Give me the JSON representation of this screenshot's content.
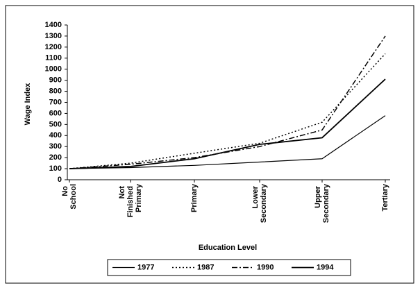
{
  "chart_data": {
    "type": "line",
    "y_label": "Wage Index",
    "x_label": "Education Level",
    "categories": [
      "No School",
      "Not Finished Primary",
      "Primary",
      "Lower Secondary",
      "Upper Secondary",
      "Tertiary"
    ],
    "series": [
      {
        "name": "1977",
        "color": "#000000",
        "dash": "solid",
        "width": 1.2,
        "values": [
          100,
          110,
          130,
          160,
          190,
          580
        ]
      },
      {
        "name": "1987",
        "color": "#000000",
        "dash": "dotted",
        "width": 1.5,
        "values": [
          100,
          150,
          240,
          330,
          520,
          1140
        ]
      },
      {
        "name": "1990",
        "color": "#000000",
        "dash": "dashdot",
        "width": 1.5,
        "values": [
          100,
          140,
          200,
          300,
          450,
          1300
        ]
      },
      {
        "name": "1994",
        "color": "#000000",
        "dash": "solid",
        "width": 1.8,
        "values": [
          100,
          120,
          190,
          320,
          380,
          910
        ]
      }
    ],
    "ylim": [
      0,
      1400
    ],
    "yticks": [
      0,
      100,
      200,
      300,
      400,
      500,
      600,
      700,
      800,
      900,
      1000,
      1100,
      1200,
      1300,
      1400
    ],
    "grid": false,
    "legend": "bottom"
  }
}
